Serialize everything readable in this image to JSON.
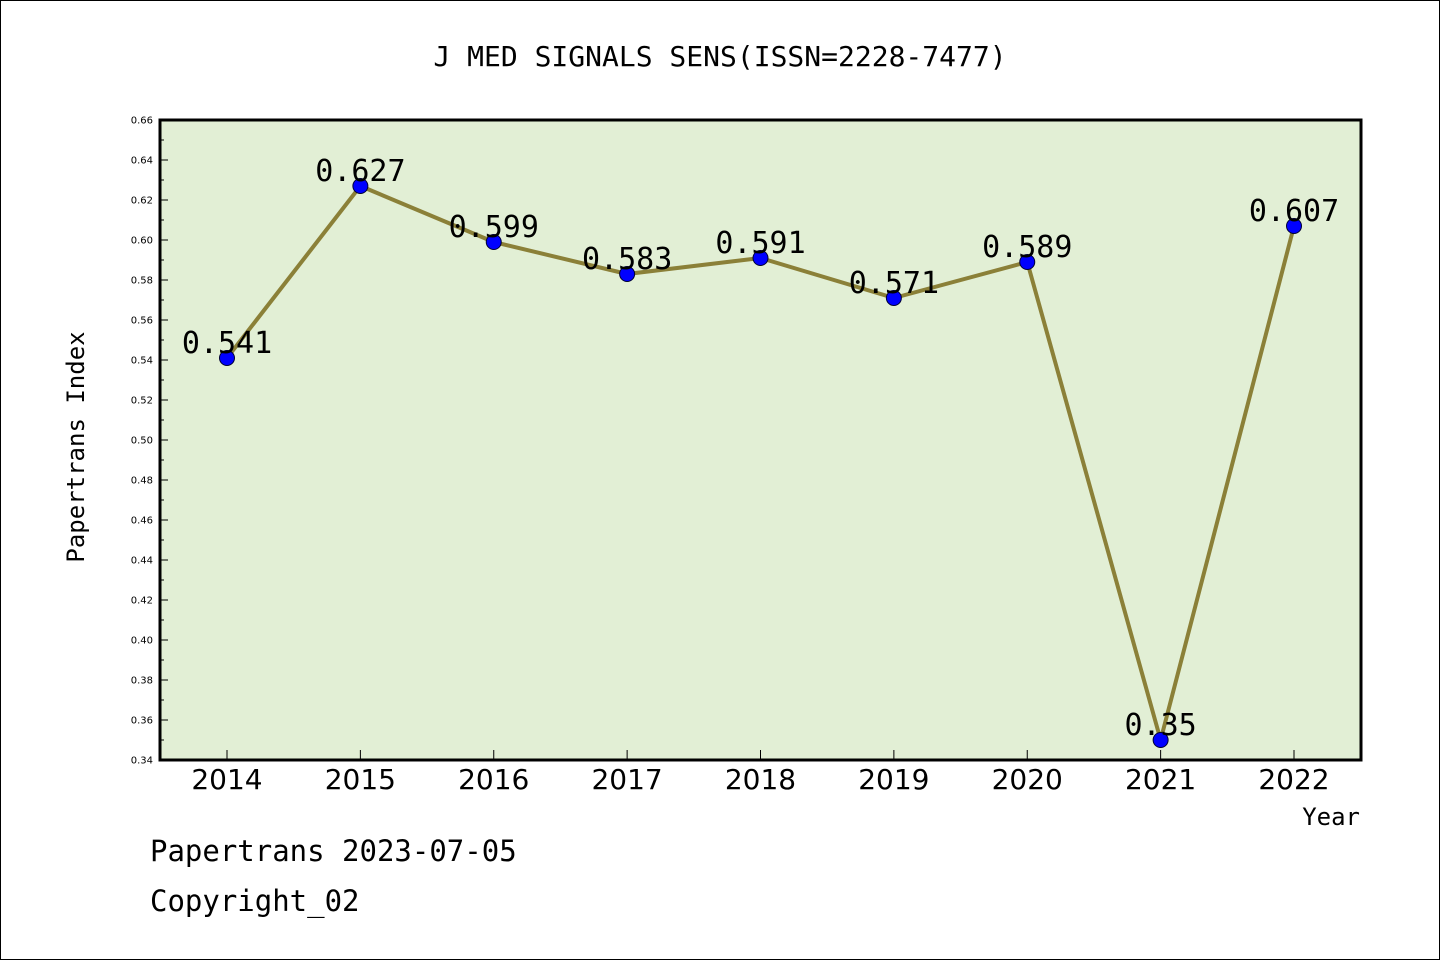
{
  "chart_data": {
    "type": "line",
    "title": "J MED SIGNALS SENS(ISSN=2228-7477)",
    "xlabel": "Year",
    "ylabel": "Papertrans Index",
    "categories": [
      "2014",
      "2015",
      "2016",
      "2017",
      "2018",
      "2019",
      "2020",
      "2021",
      "2022"
    ],
    "series": [
      {
        "values": [
          0.541,
          0.627,
          0.599,
          0.583,
          0.591,
          0.571,
          0.589,
          0.35,
          0.607
        ],
        "labels": [
          "0.541",
          "0.627",
          "0.599",
          "0.583",
          "0.591",
          "0.571",
          "0.589",
          "0.35",
          "0.607"
        ]
      }
    ],
    "ylim": [
      0.34,
      0.66
    ],
    "yticks": [
      "0.34",
      "0.36",
      "0.38",
      "0.40",
      "0.42",
      "0.44",
      "0.46",
      "0.48",
      "0.50",
      "0.52",
      "0.54",
      "0.56",
      "0.58",
      "0.60",
      "0.62",
      "0.64",
      "0.66"
    ],
    "grid": false,
    "legend": "none",
    "colors": {
      "plot_background": "#e2efd5",
      "line": "#8b8038",
      "marker": "#0000ff"
    }
  },
  "footer": {
    "line1": "Papertrans 2023-07-05",
    "line2": "Copyright_02"
  }
}
